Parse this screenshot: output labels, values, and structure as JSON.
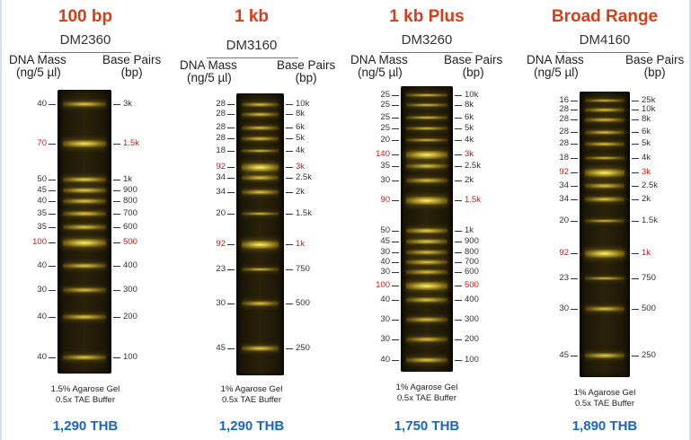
{
  "axis_headers": {
    "mass_lines": [
      "DNA Mass",
      "(ng/5 µl)"
    ],
    "bp_lines": [
      "Base Pairs",
      "(bp)"
    ]
  },
  "colors": {
    "title": "#d2401a",
    "price": "#1a66c2",
    "highlight": "#d01818"
  },
  "panels": [
    {
      "title": "100 bp",
      "catalog": "DM2360",
      "note_lines": [
        "1.5% Agarose Gel",
        "0.5x TAE Buffer"
      ],
      "price": "1,290 THB",
      "bands": [
        {
          "mass": "40",
          "bp": "3k",
          "red": false
        },
        {
          "mass": "70",
          "bp": "1.5k",
          "red": true
        },
        {
          "mass": "50",
          "bp": "1k",
          "red": false
        },
        {
          "mass": "45",
          "bp": "900",
          "red": false
        },
        {
          "mass": "40",
          "bp": "800",
          "red": false
        },
        {
          "mass": "35",
          "bp": "700",
          "red": false
        },
        {
          "mass": "35",
          "bp": "600",
          "red": false
        },
        {
          "mass": "100",
          "bp": "500",
          "red": true
        },
        {
          "mass": "40",
          "bp": "400",
          "red": false
        },
        {
          "mass": "30",
          "bp": "300",
          "red": false
        },
        {
          "mass": "40",
          "bp": "200",
          "red": false
        },
        {
          "mass": "40",
          "bp": "100",
          "red": false
        }
      ]
    },
    {
      "title": "1 kb",
      "catalog": "DM3160",
      "note_lines": [
        "1% Agarose Gel",
        "0.5x TAE Buffer"
      ],
      "price": "1,290 THB",
      "bands": [
        {
          "mass": "28",
          "bp": "10k",
          "red": false
        },
        {
          "mass": "28",
          "bp": "8k",
          "red": false
        },
        {
          "mass": "28",
          "bp": "6k",
          "red": false
        },
        {
          "mass": "28",
          "bp": "5k",
          "red": false
        },
        {
          "mass": "18",
          "bp": "4k",
          "red": false
        },
        {
          "mass": "92",
          "bp": "3k",
          "red": true
        },
        {
          "mass": "34",
          "bp": "2.5k",
          "red": false
        },
        {
          "mass": "34",
          "bp": "2k",
          "red": false
        },
        {
          "mass": "20",
          "bp": "1.5k",
          "red": false
        },
        {
          "mass": "92",
          "bp": "1k",
          "red": true
        },
        {
          "mass": "23",
          "bp": "750",
          "red": false
        },
        {
          "mass": "30",
          "bp": "500",
          "red": false
        },
        {
          "mass": "45",
          "bp": "250",
          "red": false
        }
      ]
    },
    {
      "title": "1 kb Plus",
      "catalog": "DM3260",
      "note_lines": [
        "1% Agarose Gel",
        "0.5x TAE Buffer"
      ],
      "price": "1,750 THB",
      "bands": [
        {
          "mass": "25",
          "bp": "10k",
          "red": false
        },
        {
          "mass": "25",
          "bp": "8k",
          "red": false
        },
        {
          "mass": "25",
          "bp": "6k",
          "red": false
        },
        {
          "mass": "25",
          "bp": "5k",
          "red": false
        },
        {
          "mass": "20",
          "bp": "4k",
          "red": false
        },
        {
          "mass": "140",
          "bp": "3k",
          "red": true
        },
        {
          "mass": "35",
          "bp": "2.5k",
          "red": false
        },
        {
          "mass": "30",
          "bp": "2k",
          "red": false
        },
        {
          "mass": "90",
          "bp": "1.5k",
          "red": true
        },
        {
          "mass": "50",
          "bp": "1k",
          "red": false
        },
        {
          "mass": "45",
          "bp": "900",
          "red": false
        },
        {
          "mass": "30",
          "bp": "800",
          "red": false
        },
        {
          "mass": "40",
          "bp": "700",
          "red": false
        },
        {
          "mass": "30",
          "bp": "600",
          "red": false
        },
        {
          "mass": "100",
          "bp": "500",
          "red": true
        },
        {
          "mass": "40",
          "bp": "400",
          "red": false
        },
        {
          "mass": "30",
          "bp": "300",
          "red": false
        },
        {
          "mass": "30",
          "bp": "200",
          "red": false
        },
        {
          "mass": "40",
          "bp": "100",
          "red": false
        }
      ]
    },
    {
      "title": "Broad Range",
      "catalog": "DM4160",
      "note_lines": [
        "1% Agarose Gel",
        "0.5x TAE Buffer"
      ],
      "price": "1,890 THB",
      "bands": [
        {
          "mass": "16",
          "bp": "25k",
          "red": false
        },
        {
          "mass": "28",
          "bp": "10k",
          "red": false
        },
        {
          "mass": "28",
          "bp": "8k",
          "red": false
        },
        {
          "mass": "28",
          "bp": "6k",
          "red": false
        },
        {
          "mass": "28",
          "bp": "5k",
          "red": false
        },
        {
          "mass": "18",
          "bp": "4k",
          "red": false
        },
        {
          "mass": "92",
          "bp": "3k",
          "red": true
        },
        {
          "mass": "34",
          "bp": "2.5k",
          "red": false
        },
        {
          "mass": "34",
          "bp": "2k",
          "red": false
        },
        {
          "mass": "20",
          "bp": "1.5k",
          "red": false
        },
        {
          "mass": "92",
          "bp": "1k",
          "red": true
        },
        {
          "mass": "23",
          "bp": "750",
          "red": false
        },
        {
          "mass": "30",
          "bp": "500",
          "red": false
        },
        {
          "mass": "45",
          "bp": "250",
          "red": false
        }
      ]
    }
  ]
}
